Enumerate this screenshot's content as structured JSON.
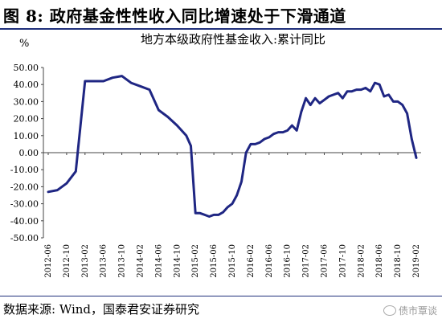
{
  "figure": {
    "title": "图 8: 政府基金性性收入同比增速处于下滑通道",
    "source": "数据来源: Wind，国泰君安证券研究",
    "watermark": "债市覃谈",
    "watermark_icon": "wechat-icon"
  },
  "chart_data": {
    "type": "line",
    "title": "地方本级政府性基金收入:累计同比",
    "ylabel": "%",
    "xlabel": "",
    "ylim": [
      -50,
      50
    ],
    "yticks": [
      "50.00",
      "40.00",
      "30.00",
      "20.00",
      "10.00",
      "0.00",
      "-10.00",
      "-20.00",
      "-30.00",
      "-40.00",
      "-50.00"
    ],
    "xtick_labels": [
      "2012-06",
      "2012-10",
      "2013-02",
      "2013-06",
      "2013-10",
      "2014-02",
      "2014-06",
      "2014-10",
      "2015-02",
      "2015-06",
      "2015-10",
      "2016-02",
      "2016-06",
      "2016-10",
      "2017-02",
      "2017-06",
      "2017-10",
      "2018-02",
      "2018-06",
      "2018-10",
      "2019-02"
    ],
    "grid": false,
    "legend": "none",
    "line_color": "#1f2683",
    "series": [
      {
        "x": [
          "2012-06",
          "2012-08",
          "2012-10",
          "2012-12",
          "2013-02",
          "2013-04",
          "2013-06",
          "2013-08",
          "2013-10",
          "2013-12",
          "2014-02",
          "2014-04",
          "2014-06",
          "2014-08",
          "2014-10",
          "2014-12",
          "2015-01",
          "2015-02",
          "2015-03",
          "2015-04",
          "2015-05",
          "2015-06",
          "2015-07",
          "2015-08",
          "2015-09",
          "2015-10",
          "2015-11",
          "2015-12",
          "2016-01",
          "2016-02",
          "2016-03",
          "2016-04",
          "2016-05",
          "2016-06",
          "2016-07",
          "2016-08",
          "2016-09",
          "2016-10",
          "2016-11",
          "2016-12",
          "2017-01",
          "2017-02",
          "2017-03",
          "2017-04",
          "2017-05",
          "2017-06",
          "2017-07",
          "2017-08",
          "2017-09",
          "2017-10",
          "2017-11",
          "2017-12",
          "2018-01",
          "2018-02",
          "2018-03",
          "2018-04",
          "2018-05",
          "2018-06",
          "2018-07",
          "2018-08",
          "2018-09",
          "2018-10",
          "2018-11",
          "2018-12",
          "2019-01",
          "2019-02"
        ],
        "values": [
          -23,
          -22,
          -18,
          -11,
          42,
          42,
          42,
          44,
          45,
          41,
          39,
          37,
          25,
          21,
          16,
          10,
          4,
          -35.5,
          -35.5,
          -36.5,
          -37.5,
          -36.5,
          -36.5,
          -35,
          -32,
          -30,
          -25,
          -17,
          0,
          5,
          5,
          6,
          8,
          9,
          11,
          12,
          12,
          13,
          16,
          13,
          24,
          32,
          28,
          32,
          29,
          31,
          33,
          34,
          35,
          32,
          36,
          36,
          37,
          37,
          38,
          36,
          41,
          40,
          33,
          34,
          30,
          30,
          28,
          23,
          8,
          -3
        ]
      }
    ]
  }
}
